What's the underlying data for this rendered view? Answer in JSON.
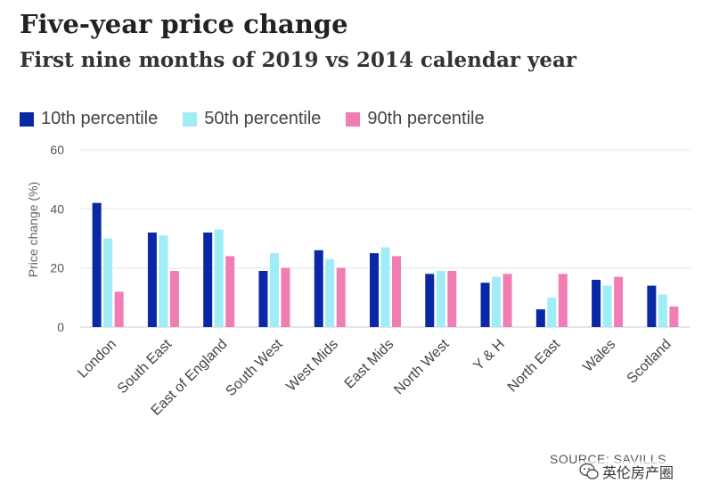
{
  "header": {
    "title": "Five-year price change",
    "subtitle": "First nine months of 2019 vs 2014 calendar year"
  },
  "legend": {
    "items": [
      {
        "label": "10th percentile",
        "color": "#0a27a6"
      },
      {
        "label": "50th percentile",
        "color": "#a0ecf7"
      },
      {
        "label": "90th percentile",
        "color": "#f07eb4"
      }
    ]
  },
  "chart_data": {
    "type": "bar",
    "title": "Five-year price change",
    "subtitle": "First nine months of 2019 vs 2014 calendar year",
    "xlabel": "",
    "ylabel": "Price change (%)",
    "ylim": [
      0,
      60
    ],
    "yticks": [
      0,
      20,
      40,
      60
    ],
    "grid": true,
    "legend_position": "top",
    "categories": [
      "London",
      "South East",
      "East of England",
      "South West",
      "West Mids",
      "East Mids",
      "North West",
      "Y & H",
      "North East",
      "Wales",
      "Scotland"
    ],
    "series": [
      {
        "name": "10th percentile",
        "color": "#0a27a6",
        "values": [
          42,
          32,
          32,
          19,
          26,
          25,
          18,
          15,
          6,
          16,
          14
        ]
      },
      {
        "name": "50th percentile",
        "color": "#a0ecf7",
        "values": [
          30,
          31,
          33,
          25,
          23,
          27,
          19,
          17,
          10,
          14,
          11
        ]
      },
      {
        "name": "90th percentile",
        "color": "#f07eb4",
        "values": [
          12,
          19,
          24,
          20,
          20,
          24,
          19,
          18,
          18,
          17,
          7
        ]
      }
    ]
  },
  "footer": {
    "source": "SOURCE: SAVILLS",
    "watermark": "英伦房产圈"
  }
}
